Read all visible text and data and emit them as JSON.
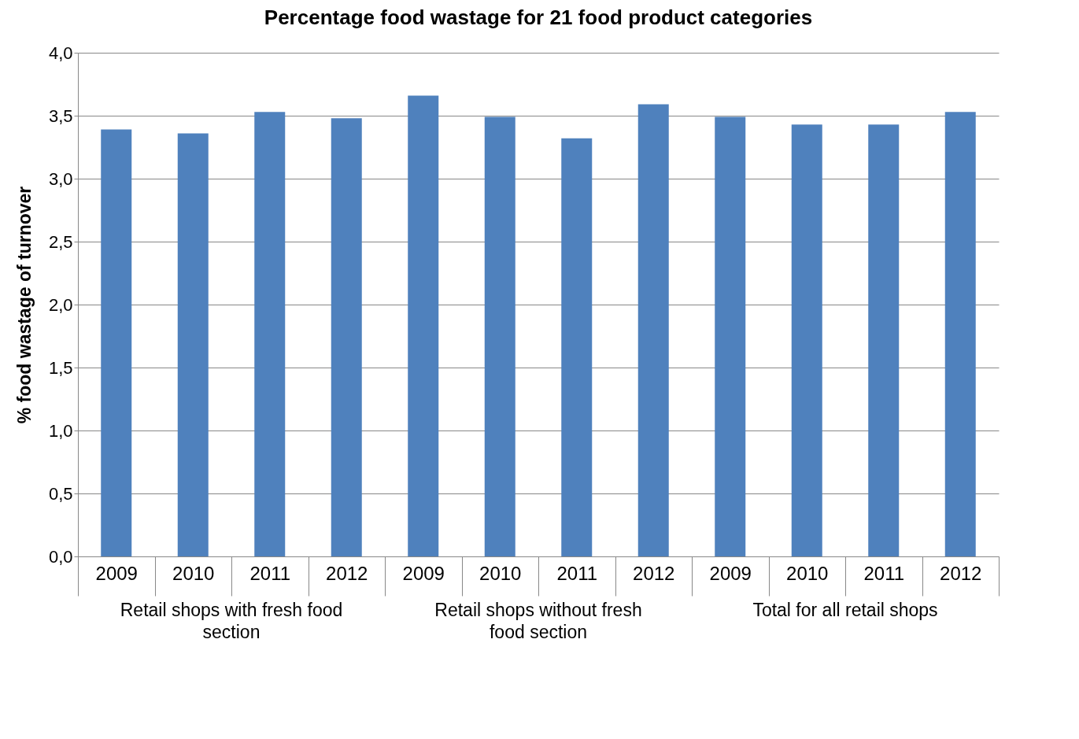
{
  "chart_data": {
    "type": "bar",
    "title": "Percentage food wastage for 21 food product categories",
    "ylabel": "% food wastage of turnover",
    "categories": [
      "2009",
      "2010",
      "2011",
      "2012",
      "2009",
      "2010",
      "2011",
      "2012",
      "2009",
      "2010",
      "2011",
      "2012"
    ],
    "values": [
      3.39,
      3.36,
      3.53,
      3.48,
      3.66,
      3.49,
      3.32,
      3.59,
      3.49,
      3.43,
      3.43,
      3.53
    ],
    "color": "#4f81bd",
    "ylim": [
      0,
      4
    ],
    "yticks": [
      {
        "value": 0,
        "label": "0,0"
      },
      {
        "value": 0.5,
        "label": "0,5"
      },
      {
        "value": 1,
        "label": "1,0"
      },
      {
        "value": 1.5,
        "label": "1,5"
      },
      {
        "value": 2,
        "label": "2,0"
      },
      {
        "value": 2.5,
        "label": "2,5"
      },
      {
        "value": 3,
        "label": "3,0"
      },
      {
        "value": 3.5,
        "label": "3,5"
      },
      {
        "value": 4,
        "label": "4,0"
      }
    ],
    "grid": "y",
    "annotations": [
      "Retail shops with fresh food section",
      "Retail shops without fresh food section",
      "Total for all retail shops"
    ]
  }
}
